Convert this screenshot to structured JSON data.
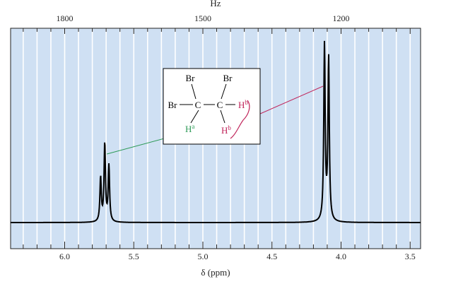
{
  "chart_data": {
    "type": "line",
    "title": "",
    "xlabel": "δ (ppm)",
    "top_axis_label": "Hz",
    "x_axis": {
      "unit": "ppm",
      "range": [
        6.4,
        3.4
      ],
      "reversed": true,
      "tick_labels": [
        "6.0",
        "5.5",
        "5.0",
        "4.5",
        "4.0",
        "3.5"
      ],
      "tick_values": [
        6.0,
        5.5,
        5.0,
        4.5,
        4.0,
        3.5
      ]
    },
    "top_axis": {
      "unit": "Hz",
      "tick_labels": [
        "1800",
        "1500",
        "1200"
      ],
      "tick_values_ppm": [
        6.0,
        5.0,
        4.0
      ]
    },
    "grid": true,
    "background_color": "#cfe0f3",
    "line_color": "#000000",
    "series": [
      {
        "peaks": [
          {
            "ppm": 5.74,
            "height": 0.55
          },
          {
            "ppm": 5.71,
            "height": 0.98
          },
          {
            "ppm": 5.68,
            "height": 0.7
          },
          {
            "ppm": 4.12,
            "height": 2.2
          },
          {
            "ppm": 4.09,
            "height": 2.04
          }
        ]
      }
    ]
  },
  "structure": {
    "br_top_left": "Br",
    "br_top_right": "Br",
    "br_left": "Br",
    "c_left": "C",
    "c_right": "C",
    "ha_text": "H",
    "ha_sup": "a",
    "hb_right_text": "H",
    "hb_right_sup": "b",
    "hb_bottom_text": "H",
    "hb_bottom_sup": "b",
    "ha_color": "#2e9a57",
    "hb_color": "#c0245a"
  },
  "annotations": [
    {
      "label": "Ha",
      "color": "#2e9a57",
      "target_ppm": 5.71
    },
    {
      "label": "Hb",
      "color": "#c0245a",
      "target_ppm": 4.12
    }
  ]
}
